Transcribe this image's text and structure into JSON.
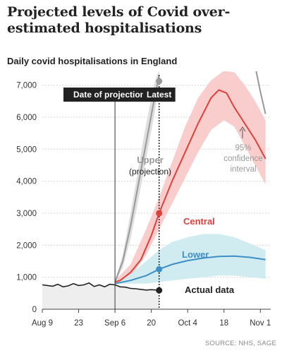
{
  "title": "Projected levels of Covid over-estimated hospitalisations",
  "source": "SOURCE: NHS, SAGE",
  "chart_data": {
    "type": "line",
    "subtitle": "Daily covid hospitalisations in England",
    "x_ticks": [
      "Aug 9",
      "23",
      "Sep 6",
      "20",
      "Oct 4",
      "18",
      "Nov 1"
    ],
    "x_tick_days": [
      0,
      14,
      28,
      42,
      56,
      70,
      84
    ],
    "y_ticks": [
      "0",
      "1,000",
      "2,000",
      "3,000",
      "4,000",
      "5,000",
      "6,000",
      "7,000"
    ],
    "ylim": [
      0,
      7300
    ],
    "grid": true,
    "markers": {
      "projection_label": "Date of projection",
      "projection_day": 28,
      "latest_label": "Latest",
      "latest_day": 45
    },
    "labels": {
      "upper": "Upper",
      "upper_sub": "(projection)",
      "central": "Central",
      "lower": "Lower",
      "actual": "Actual data",
      "ci_line1": "95%",
      "ci_line2": "confidence",
      "ci_line3": "interval"
    },
    "colors": {
      "central": "#e0403a",
      "central_band": "#f9c8c8",
      "lower": "#3d8fc6",
      "lower_band": "#cbeaf0",
      "upper": "#999999",
      "upper_band": "#dedede",
      "actual": "#222222",
      "actual_area": "#eeeeee"
    },
    "series": [
      {
        "name": "Actual data",
        "x": [
          0,
          2,
          4,
          6,
          8,
          10,
          12,
          14,
          16,
          18,
          20,
          22,
          24,
          26,
          28,
          30,
          32,
          34,
          36,
          38,
          40,
          42,
          44,
          45
        ],
        "y": [
          760,
          740,
          720,
          780,
          700,
          730,
          800,
          740,
          760,
          820,
          710,
          760,
          700,
          780,
          760,
          700,
          690,
          650,
          640,
          620,
          600,
          610,
          600,
          590
        ]
      },
      {
        "name": "Central",
        "x": [
          28,
          30,
          34,
          38,
          42,
          45,
          50,
          55,
          60,
          65,
          68,
          71,
          74,
          78,
          82,
          86
        ],
        "y": [
          850,
          900,
          1150,
          1550,
          2300,
          3000,
          4000,
          4900,
          5800,
          6600,
          6850,
          6750,
          6300,
          5800,
          5300,
          4700
        ]
      },
      {
        "name": "Central band upper",
        "x": [
          28,
          34,
          40,
          45,
          50,
          55,
          60,
          65,
          70,
          74,
          78,
          82,
          86
        ],
        "y": [
          900,
          1400,
          2500,
          3500,
          4600,
          5700,
          6600,
          7150,
          7450,
          7400,
          7000,
          6500,
          5900
        ]
      },
      {
        "name": "Central band lower",
        "x": [
          28,
          34,
          40,
          45,
          50,
          55,
          60,
          65,
          70,
          74,
          78,
          82,
          86
        ],
        "y": [
          800,
          1000,
          1700,
          2500,
          3300,
          4100,
          4900,
          5600,
          5900,
          5700,
          5100,
          4500,
          3900
        ]
      },
      {
        "name": "Lower",
        "x": [
          28,
          34,
          40,
          45,
          50,
          56,
          62,
          68,
          74,
          80,
          86
        ],
        "y": [
          800,
          900,
          1050,
          1250,
          1400,
          1520,
          1600,
          1650,
          1660,
          1620,
          1550
        ]
      },
      {
        "name": "Lower band upper",
        "x": [
          28,
          34,
          40,
          45,
          50,
          56,
          62,
          68,
          74,
          80,
          86
        ],
        "y": [
          850,
          1100,
          1500,
          1850,
          2100,
          2250,
          2350,
          2350,
          2250,
          2050,
          1850
        ]
      },
      {
        "name": "Lower band lower",
        "x": [
          28,
          34,
          40,
          45,
          50,
          56,
          62,
          68,
          74,
          80,
          86
        ],
        "y": [
          780,
          800,
          800,
          850,
          900,
          950,
          1000,
          1050,
          1050,
          1000,
          950
        ]
      },
      {
        "name": "Upper",
        "x": [
          28,
          31,
          34,
          37,
          40,
          43,
          45
        ],
        "y": [
          850,
          1500,
          2600,
          3900,
          5200,
          6500,
          7300
        ]
      },
      {
        "name": "Upper band high",
        "x": [
          28,
          31,
          34,
          37,
          40,
          43,
          45
        ],
        "y": [
          880,
          1700,
          3000,
          4400,
          5800,
          7000,
          7500
        ]
      },
      {
        "name": "Upper band low",
        "x": [
          28,
          31,
          34,
          37,
          40,
          43,
          45
        ],
        "y": [
          820,
          1300,
          2200,
          3400,
          4700,
          6000,
          7000
        ]
      },
      {
        "name": "Upper later",
        "x": [
          82,
          84,
          86
        ],
        "y": [
          7600,
          6800,
          6100
        ]
      }
    ],
    "points": [
      {
        "name": "Central",
        "x": 45,
        "y": 3000
      },
      {
        "name": "Lower",
        "x": 45,
        "y": 1250
      },
      {
        "name": "Actual data",
        "x": 45,
        "y": 590
      },
      {
        "name": "Upper",
        "x": 45,
        "y": 7300
      }
    ]
  }
}
